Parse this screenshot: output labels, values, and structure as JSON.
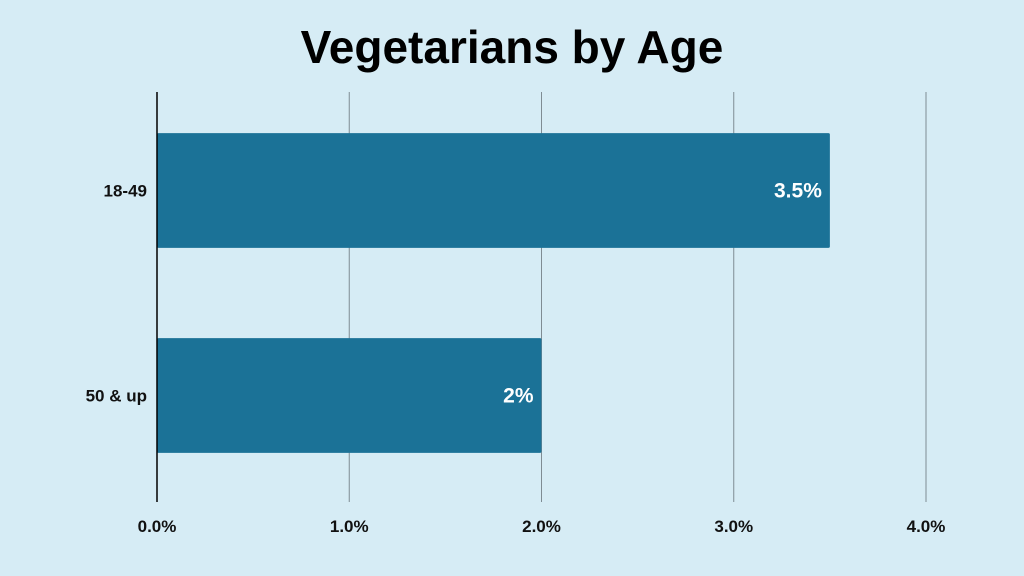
{
  "chart_data": {
    "type": "bar",
    "orientation": "horizontal",
    "title": "Vegetarians by Age",
    "categories": [
      "18-49",
      "50 & up"
    ],
    "values": [
      3.5,
      2.0
    ],
    "data_labels": [
      "3.5%",
      "2%"
    ],
    "x_ticks": [
      "0.0%",
      "1.0%",
      "2.0%",
      "3.0%",
      "4.0%"
    ],
    "xlim": [
      0,
      4
    ],
    "xlabel": "",
    "ylabel": "",
    "grid": true,
    "bar_color": "#1b7297",
    "background_color": "#d6ecf5"
  }
}
